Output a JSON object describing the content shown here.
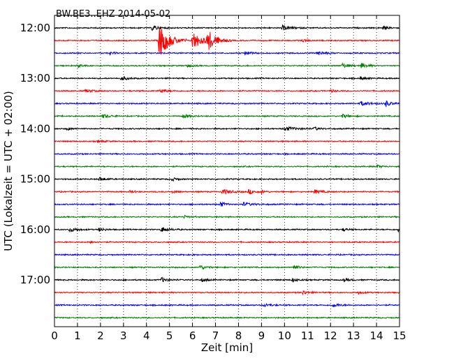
{
  "chart_data": {
    "type": "line",
    "title": "BW.BE3..EHZ 2014-05-02",
    "xlabel": "Zeit  [min]",
    "ylabel": "UTC (Lokalzeit = UTC + 02:00)",
    "xlim": [
      0,
      15
    ],
    "x_ticks": [
      "0",
      "1",
      "2",
      "3",
      "4",
      "5",
      "6",
      "7",
      "8",
      "9",
      "10",
      "11",
      "12",
      "13",
      "14",
      "15"
    ],
    "y_tick_labels": [
      "12:00",
      "13:00",
      "14:00",
      "15:00",
      "16:00",
      "17:00"
    ],
    "grid": "vertical dotted",
    "colors": [
      "#000000",
      "#ff0000",
      "#0000ff",
      "#008000"
    ],
    "series": [
      {
        "start": "12:00",
        "color": "#000000",
        "events": [
          {
            "t": 4.25,
            "amp": 0.45,
            "dur": 0.25
          },
          {
            "t": 9.9,
            "amp": 0.35,
            "dur": 0.35
          },
          {
            "t": 14.3,
            "amp": 0.25,
            "dur": 0.2
          }
        ]
      },
      {
        "start": "12:15",
        "color": "#ff0000",
        "events": [
          {
            "t": 4.55,
            "amp": 2.8,
            "dur": 0.4
          },
          {
            "t": 6.0,
            "amp": 1.5,
            "dur": 0.35
          },
          {
            "t": 6.65,
            "amp": 1.6,
            "dur": 0.35
          },
          {
            "t": 10.8,
            "amp": 0.2,
            "dur": 0.2
          }
        ]
      },
      {
        "start": "12:30",
        "color": "#0000ff",
        "events": [
          {
            "t": 2.4,
            "amp": 0.2,
            "dur": 0.2
          },
          {
            "t": 8.3,
            "amp": 0.3,
            "dur": 0.2
          },
          {
            "t": 11.4,
            "amp": 0.3,
            "dur": 0.3
          }
        ]
      },
      {
        "start": "12:45",
        "color": "#008000",
        "events": [
          {
            "t": 1.0,
            "amp": 0.25,
            "dur": 0.2
          },
          {
            "t": 5.75,
            "amp": 0.25,
            "dur": 0.2
          },
          {
            "t": 12.5,
            "amp": 0.35,
            "dur": 0.3
          },
          {
            "t": 13.35,
            "amp": 0.4,
            "dur": 0.25
          }
        ]
      },
      {
        "start": "13:00",
        "color": "#000000",
        "events": [
          {
            "t": 2.9,
            "amp": 0.35,
            "dur": 0.25
          },
          {
            "t": 13.3,
            "amp": 0.25,
            "dur": 0.2
          }
        ]
      },
      {
        "start": "13:15",
        "color": "#ff0000",
        "events": [
          {
            "t": 1.35,
            "amp": 0.2,
            "dur": 0.3
          },
          {
            "t": 4.6,
            "amp": 0.3,
            "dur": 0.25
          },
          {
            "t": 12.0,
            "amp": 0.2,
            "dur": 0.2
          }
        ]
      },
      {
        "start": "13:30",
        "color": "#0000ff",
        "events": [
          {
            "t": 13.3,
            "amp": 0.35,
            "dur": 0.35
          },
          {
            "t": 14.4,
            "amp": 0.5,
            "dur": 0.2
          }
        ]
      },
      {
        "start": "13:45",
        "color": "#008000",
        "events": [
          {
            "t": 2.1,
            "amp": 0.3,
            "dur": 0.3
          },
          {
            "t": 5.6,
            "amp": 0.3,
            "dur": 0.25
          },
          {
            "t": 12.5,
            "amp": 0.3,
            "dur": 0.25
          }
        ]
      },
      {
        "start": "14:00",
        "color": "#000000",
        "events": [
          {
            "t": 0.55,
            "amp": 0.25,
            "dur": 0.15
          },
          {
            "t": 10.0,
            "amp": 0.3,
            "dur": 0.5
          },
          {
            "t": 11.3,
            "amp": 0.25,
            "dur": 0.2
          }
        ]
      },
      {
        "start": "14:15",
        "color": "#ff0000",
        "events": [
          {
            "t": 1.9,
            "amp": 0.15,
            "dur": 0.25
          }
        ]
      },
      {
        "start": "14:30",
        "color": "#0000ff",
        "events": []
      },
      {
        "start": "14:45",
        "color": "#008000",
        "events": [
          {
            "t": 14.0,
            "amp": 0.25,
            "dur": 0.2
          }
        ]
      },
      {
        "start": "15:00",
        "color": "#000000",
        "events": [
          {
            "t": 1.95,
            "amp": 0.3,
            "dur": 0.25
          },
          {
            "t": 5.1,
            "amp": 0.25,
            "dur": 0.2
          }
        ]
      },
      {
        "start": "15:15",
        "color": "#ff0000",
        "events": [
          {
            "t": 3.3,
            "amp": 0.25,
            "dur": 0.15
          },
          {
            "t": 5.15,
            "amp": 0.25,
            "dur": 0.15
          },
          {
            "t": 7.3,
            "amp": 0.4,
            "dur": 0.35
          },
          {
            "t": 8.45,
            "amp": 0.4,
            "dur": 0.2
          },
          {
            "t": 9.0,
            "amp": 0.25,
            "dur": 0.15
          },
          {
            "t": 11.3,
            "amp": 0.3,
            "dur": 0.3
          }
        ]
      },
      {
        "start": "15:30",
        "color": "#0000ff",
        "events": [
          {
            "t": 7.2,
            "amp": 0.4,
            "dur": 0.2
          },
          {
            "t": 8.2,
            "amp": 0.25,
            "dur": 0.4
          }
        ]
      },
      {
        "start": "15:45",
        "color": "#008000",
        "events": [
          {
            "t": 5.65,
            "amp": 0.2,
            "dur": 0.2
          }
        ]
      },
      {
        "start": "16:00",
        "color": "#000000",
        "events": [
          {
            "t": 0.65,
            "amp": 0.35,
            "dur": 0.3
          },
          {
            "t": 1.95,
            "amp": 0.3,
            "dur": 0.2
          },
          {
            "t": 4.65,
            "amp": 0.4,
            "dur": 0.3
          },
          {
            "t": 12.55,
            "amp": 0.25,
            "dur": 0.15
          },
          {
            "t": 14.95,
            "amp": 0.3,
            "dur": 0.1
          }
        ]
      },
      {
        "start": "16:15",
        "color": "#ff0000",
        "events": [
          {
            "t": 1.6,
            "amp": 0.3,
            "dur": 0.15
          }
        ]
      },
      {
        "start": "16:30",
        "color": "#0000ff",
        "events": []
      },
      {
        "start": "16:45",
        "color": "#008000",
        "events": [
          {
            "t": 6.3,
            "amp": 0.35,
            "dur": 0.25
          },
          {
            "t": 10.4,
            "amp": 0.4,
            "dur": 0.2
          }
        ]
      },
      {
        "start": "17:00",
        "color": "#000000",
        "events": [
          {
            "t": 4.65,
            "amp": 0.35,
            "dur": 0.25
          },
          {
            "t": 6.4,
            "amp": 0.25,
            "dur": 0.2
          },
          {
            "t": 10.35,
            "amp": 0.3,
            "dur": 0.2
          },
          {
            "t": 12.6,
            "amp": 0.25,
            "dur": 0.2
          }
        ]
      },
      {
        "start": "17:15",
        "color": "#ff0000",
        "events": [
          {
            "t": 10.8,
            "amp": 0.3,
            "dur": 0.2
          },
          {
            "t": 13.2,
            "amp": 0.25,
            "dur": 0.2
          }
        ]
      },
      {
        "start": "17:30",
        "color": "#0000ff",
        "events": [
          {
            "t": 9.1,
            "amp": 0.25,
            "dur": 0.25
          },
          {
            "t": 12.1,
            "amp": 0.3,
            "dur": 0.25
          }
        ]
      },
      {
        "start": "17:45",
        "color": "#008000",
        "events": []
      }
    ]
  }
}
